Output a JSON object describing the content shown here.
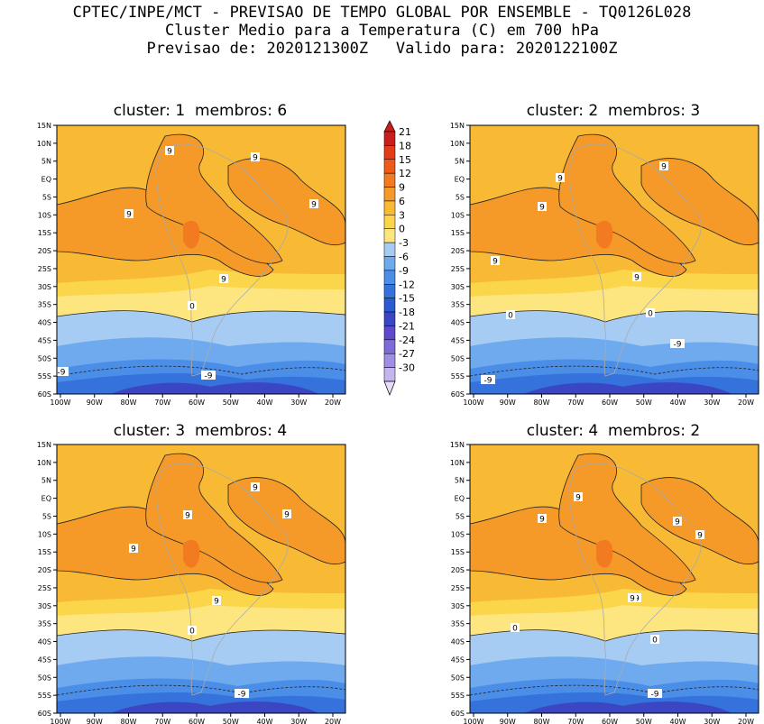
{
  "header": {
    "line1": "CPTEC/INPE/MCT - PREVISAO DE TEMPO GLOBAL POR ENSEMBLE - TQ0126L028",
    "line2": "Cluster Medio para a Temperatura (C) em 700 hPa",
    "line3": "Previsao de: 2020121300Z   Valido para: 2020122100Z"
  },
  "lat_labels": [
    "15N",
    "10N",
    "5N",
    "EQ",
    "5S",
    "10S",
    "15S",
    "20S",
    "25S",
    "30S",
    "35S",
    "40S",
    "45S",
    "50S",
    "55S",
    "60S"
  ],
  "lon_labels": [
    "100W",
    "90W",
    "80W",
    "70W",
    "60W",
    "50W",
    "40W",
    "30W",
    "20W"
  ],
  "colorbar": {
    "labels": [
      "21",
      "18",
      "15",
      "12",
      "9",
      "6",
      "3",
      "0",
      "-3",
      "-6",
      "-9",
      "-12",
      "-15",
      "-18",
      "-21",
      "-24",
      "-27",
      "-30"
    ],
    "colors": [
      "#c81e1e",
      "#e23c18",
      "#ee5a18",
      "#f27a20",
      "#f59a28",
      "#f8b935",
      "#fcd64a",
      "#fde680",
      "#a7ccf4",
      "#6faaee",
      "#4a8ee8",
      "#3572dc",
      "#2b5ad2",
      "#3a46c4",
      "#5c4ccc",
      "#7d6cd8",
      "#a08ee4",
      "#c4b4f0"
    ]
  },
  "panels": [
    {
      "title": "cluster: 1  membros: 6",
      "contour_labels": [
        {
          "t": "9"
        },
        {
          "t": "9"
        },
        {
          "t": "9"
        },
        {
          "t": "9"
        },
        {
          "t": "9"
        },
        {
          "t": "0"
        },
        {
          "t": "-9"
        },
        {
          "t": "-9"
        }
      ]
    },
    {
      "title": "cluster: 2  membros: 3",
      "contour_labels": [
        {
          "t": "9"
        },
        {
          "t": "9"
        },
        {
          "t": "9"
        },
        {
          "t": "9"
        },
        {
          "t": "9"
        },
        {
          "t": "0"
        },
        {
          "t": "0"
        },
        {
          "t": "-9"
        },
        {
          "t": "-9"
        }
      ]
    },
    {
      "title": "cluster: 3  membros: 4",
      "contour_labels": [
        {
          "t": "9"
        },
        {
          "t": "9"
        },
        {
          "t": "9"
        },
        {
          "t": "9"
        },
        {
          "t": "9"
        },
        {
          "t": "0"
        },
        {
          "t": "-9"
        }
      ]
    },
    {
      "title": "cluster: 4  membros: 2",
      "contour_labels": [
        {
          "t": "9"
        },
        {
          "t": "9"
        },
        {
          "t": "9"
        },
        {
          "t": "9"
        },
        {
          "t": "9"
        },
        {
          "t": "9"
        },
        {
          "t": "0"
        },
        {
          "t": "0"
        },
        {
          "t": "-9"
        }
      ]
    }
  ]
}
